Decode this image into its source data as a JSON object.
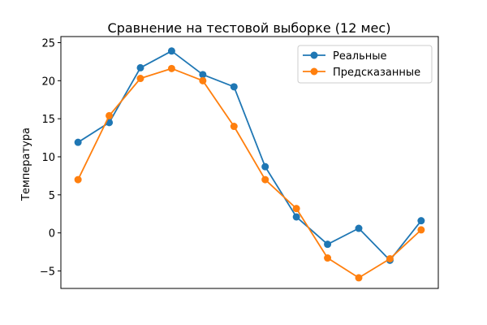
{
  "chart_data": {
    "type": "line",
    "title": "Сравнение на тестовой выборке (12 мес)",
    "xlabel": "",
    "ylabel": "Температура",
    "x": [
      0,
      1,
      2,
      3,
      4,
      5,
      6,
      7,
      8,
      9,
      10,
      11
    ],
    "xlim": [
      -0.55,
      11.55
    ],
    "ylim": [
      -7.3,
      25.8
    ],
    "yticks": [
      -5,
      0,
      5,
      10,
      15,
      20,
      25
    ],
    "ytick_labels": [
      "−5",
      "0",
      "5",
      "10",
      "15",
      "20",
      "25"
    ],
    "grid": false,
    "legend_position": "top-right",
    "series": [
      {
        "name": "Реальные",
        "color": "#1f77b4",
        "marker": "circle",
        "values": [
          11.9,
          14.5,
          21.7,
          23.9,
          20.8,
          19.2,
          8.7,
          2.1,
          -1.5,
          0.6,
          -3.6,
          1.6
        ]
      },
      {
        "name": "Предсказанные",
        "color": "#ff7f0e",
        "marker": "circle",
        "values": [
          7.0,
          15.4,
          20.3,
          21.6,
          20.0,
          14.0,
          7.0,
          3.2,
          -3.3,
          -5.9,
          -3.4,
          0.4
        ]
      }
    ]
  }
}
